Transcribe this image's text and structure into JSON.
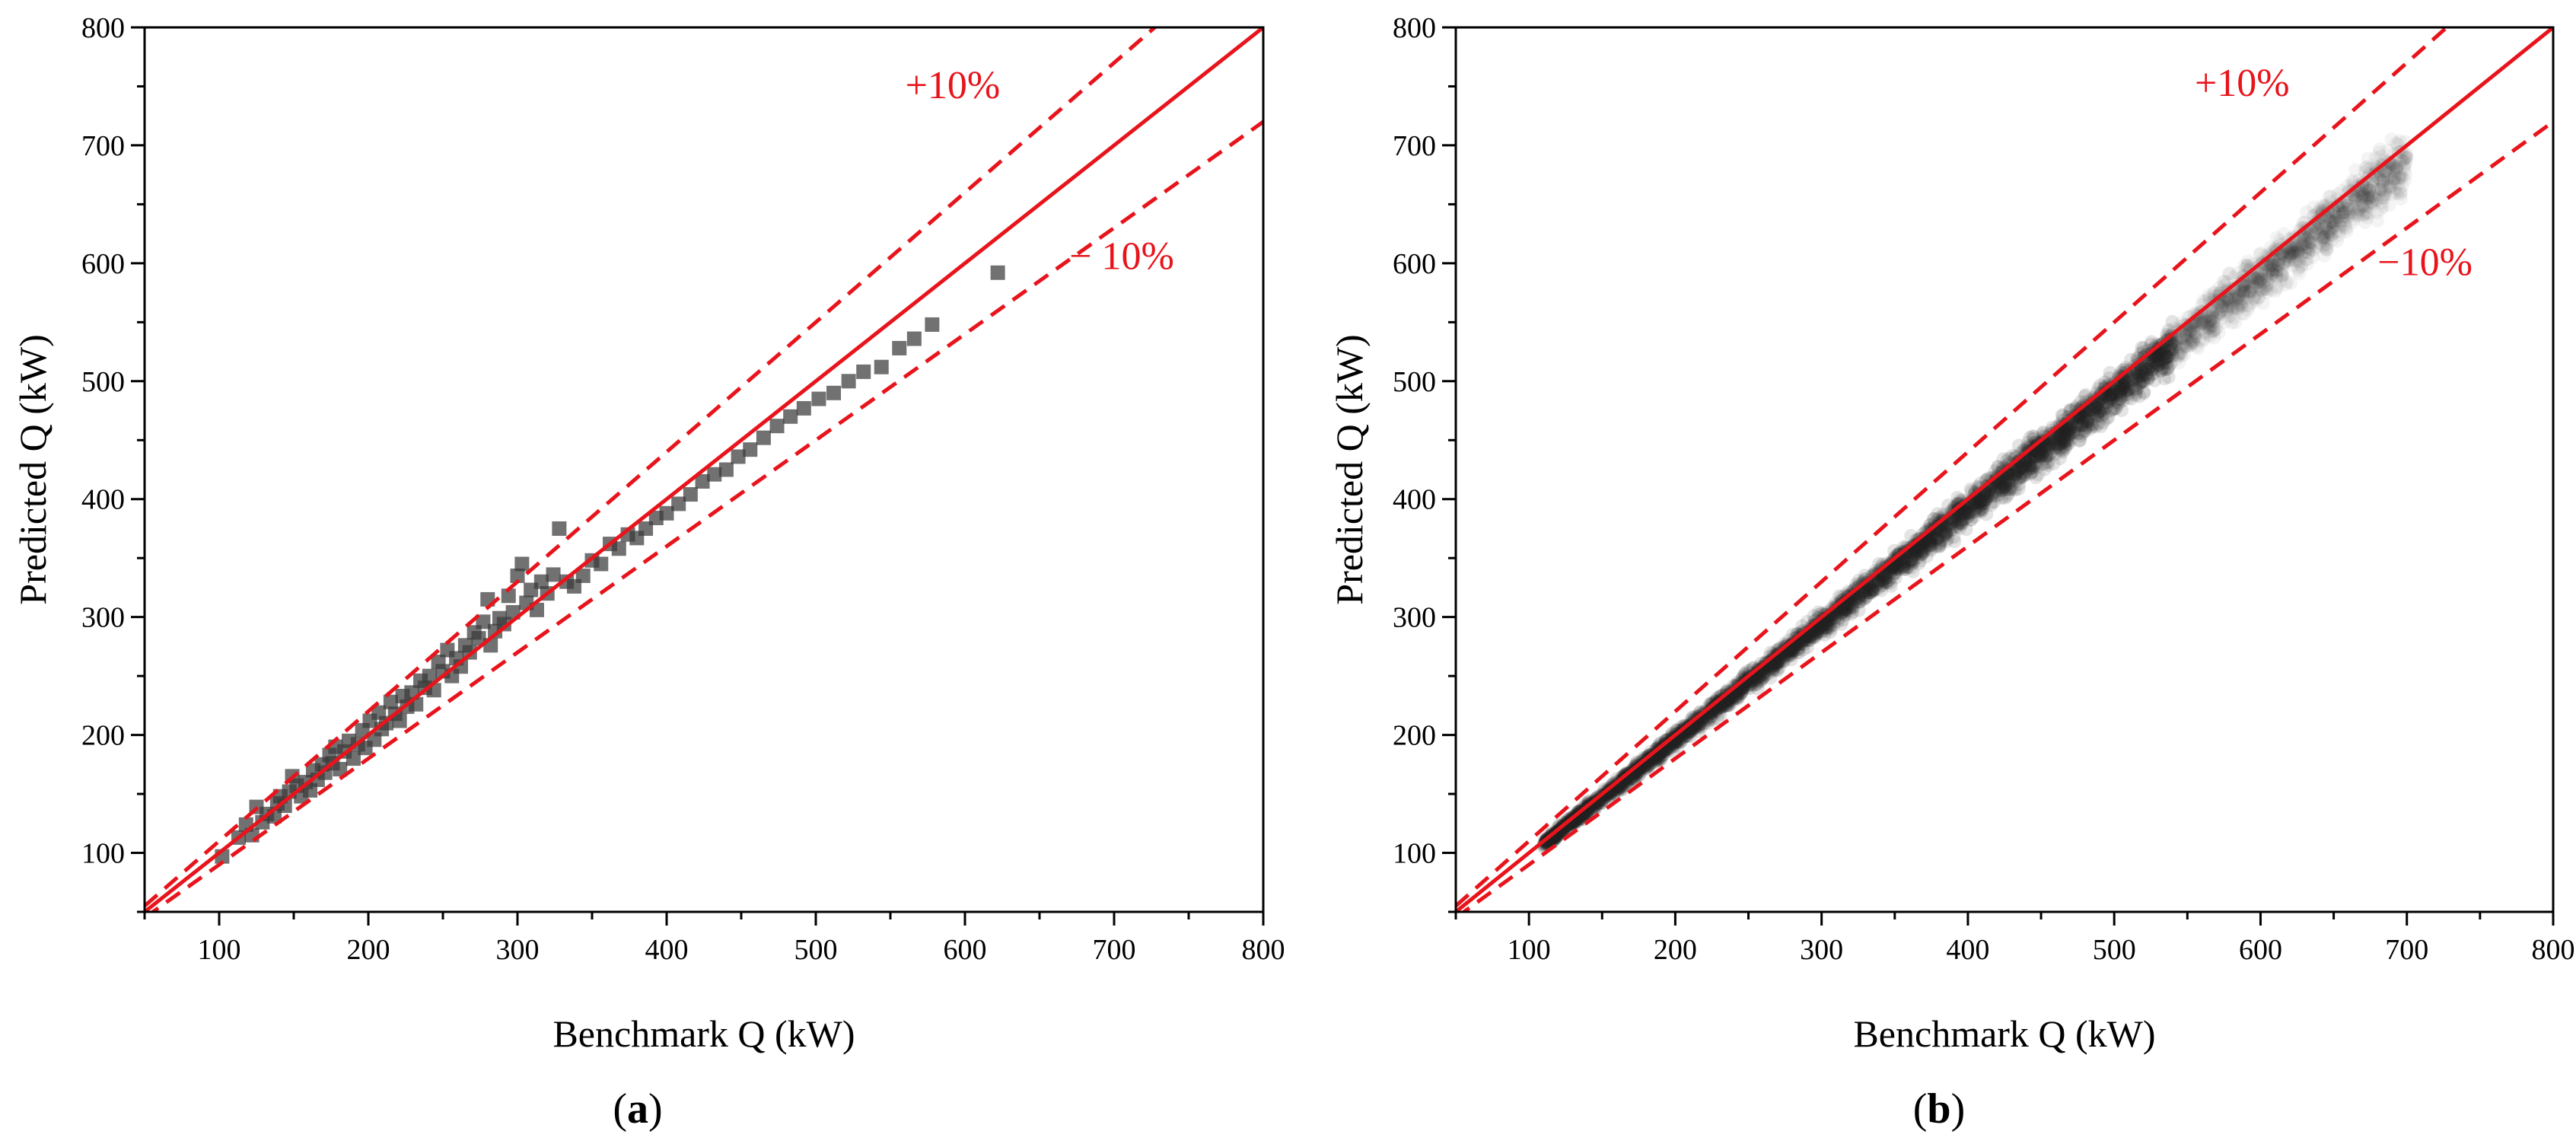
{
  "figure": {
    "colors": {
      "reference": "#e8141c",
      "points": "#3a3a3a",
      "axis": "#000000"
    }
  },
  "chart_data": [
    {
      "type": "scatter",
      "panel": "a",
      "panel_label_letter": "a",
      "xlabel": "Benchmark Q (kW)",
      "ylabel": "Predicted Q (kW)",
      "xlim": [
        50,
        800
      ],
      "ylim": [
        50,
        800
      ],
      "xticks": [
        100,
        200,
        300,
        400,
        500,
        600,
        700,
        800
      ],
      "yticks": [
        100,
        200,
        300,
        400,
        500,
        600,
        700,
        800
      ],
      "marker": "square",
      "reference_lines": [
        {
          "name": "1:1",
          "slope": 1.0,
          "style": "solid"
        },
        {
          "name": "+10%",
          "slope": 1.1,
          "style": "dashed"
        },
        {
          "name": "-10%",
          "slope": 0.9,
          "style": "dashed"
        }
      ],
      "annotations": [
        {
          "text": "+10%",
          "x": 560,
          "y": 740
        },
        {
          "text": "− 10%",
          "x": 670,
          "y": 595
        }
      ],
      "points": [
        [
          102,
          97
        ],
        [
          113,
          113
        ],
        [
          118,
          124
        ],
        [
          122,
          115
        ],
        [
          125,
          139
        ],
        [
          129,
          126
        ],
        [
          132,
          133
        ],
        [
          137,
          131
        ],
        [
          139,
          142
        ],
        [
          141,
          148
        ],
        [
          144,
          140
        ],
        [
          147,
          152
        ],
        [
          149,
          165
        ],
        [
          152,
          157
        ],
        [
          155,
          148
        ],
        [
          158,
          160
        ],
        [
          161,
          153
        ],
        [
          163,
          170
        ],
        [
          166,
          162
        ],
        [
          169,
          175
        ],
        [
          171,
          168
        ],
        [
          174,
          183
        ],
        [
          176,
          176
        ],
        [
          178,
          190
        ],
        [
          181,
          171
        ],
        [
          184,
          186
        ],
        [
          187,
          195
        ],
        [
          190,
          180
        ],
        [
          193,
          192
        ],
        [
          196,
          204
        ],
        [
          198,
          189
        ],
        [
          201,
          212
        ],
        [
          204,
          196
        ],
        [
          207,
          219
        ],
        [
          209,
          205
        ],
        [
          212,
          210
        ],
        [
          215,
          228
        ],
        [
          218,
          218
        ],
        [
          221,
          212
        ],
        [
          223,
          233
        ],
        [
          226,
          224
        ],
        [
          229,
          236
        ],
        [
          232,
          226
        ],
        [
          235,
          246
        ],
        [
          238,
          240
        ],
        [
          241,
          250
        ],
        [
          244,
          238
        ],
        [
          247,
          262
        ],
        [
          250,
          254
        ],
        [
          253,
          272
        ],
        [
          256,
          250
        ],
        [
          259,
          265
        ],
        [
          262,
          258
        ],
        [
          265,
          276
        ],
        [
          268,
          270
        ],
        [
          271,
          287
        ],
        [
          274,
          282
        ],
        [
          277,
          296
        ],
        [
          280,
          315
        ],
        [
          282,
          276
        ],
        [
          285,
          288
        ],
        [
          288,
          299
        ],
        [
          291,
          294
        ],
        [
          294,
          318
        ],
        [
          297,
          304
        ],
        [
          300,
          335
        ],
        [
          303,
          345
        ],
        [
          306,
          312
        ],
        [
          309,
          323
        ],
        [
          313,
          306
        ],
        [
          316,
          330
        ],
        [
          320,
          320
        ],
        [
          324,
          336
        ],
        [
          328,
          375
        ],
        [
          333,
          330
        ],
        [
          338,
          326
        ],
        [
          344,
          335
        ],
        [
          350,
          348
        ],
        [
          356,
          345
        ],
        [
          362,
          362
        ],
        [
          368,
          358
        ],
        [
          374,
          370
        ],
        [
          380,
          367
        ],
        [
          386,
          375
        ],
        [
          393,
          384
        ],
        [
          400,
          388
        ],
        [
          408,
          396
        ],
        [
          416,
          404
        ],
        [
          424,
          415
        ],
        [
          432,
          421
        ],
        [
          440,
          425
        ],
        [
          448,
          436
        ],
        [
          456,
          442
        ],
        [
          465,
          452
        ],
        [
          474,
          462
        ],
        [
          483,
          470
        ],
        [
          492,
          477
        ],
        [
          502,
          485
        ],
        [
          512,
          490
        ],
        [
          522,
          500
        ],
        [
          532,
          508
        ],
        [
          544,
          512
        ],
        [
          556,
          528
        ],
        [
          566,
          536
        ],
        [
          578,
          548
        ],
        [
          622,
          592
        ]
      ]
    },
    {
      "type": "scatter",
      "panel": "b",
      "panel_label_letter": "b",
      "xlabel": "Benchmark Q (kW)",
      "ylabel": "Predicted Q (kW)",
      "xlim": [
        50,
        800
      ],
      "ylim": [
        50,
        800
      ],
      "xticks": [
        100,
        200,
        300,
        400,
        500,
        600,
        700,
        800
      ],
      "yticks": [
        100,
        200,
        300,
        400,
        500,
        600,
        700,
        800
      ],
      "marker": "circle-translucent",
      "point_cloud": {
        "x_range": [
          110,
          700
        ],
        "y_ratio_center": 0.98,
        "y_ratio_spread": 0.05,
        "dense_until_x": 540
      },
      "reference_lines": [
        {
          "name": "1:1",
          "slope": 1.0,
          "style": "solid"
        },
        {
          "name": "+10%",
          "slope": 1.1,
          "style": "dashed"
        },
        {
          "name": "-10%",
          "slope": 0.9,
          "style": "dashed"
        }
      ],
      "annotations": [
        {
          "text": "+10%",
          "x": 555,
          "y": 742
        },
        {
          "text": "−10%",
          "x": 680,
          "y": 590
        }
      ]
    }
  ]
}
